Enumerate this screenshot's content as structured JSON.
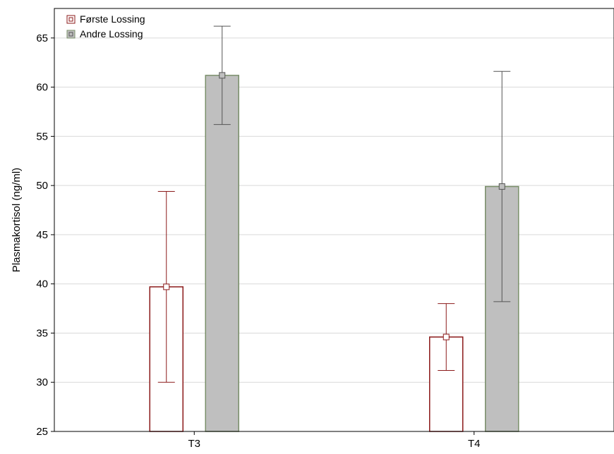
{
  "chart_data": {
    "type": "bar",
    "title": "",
    "xlabel": "",
    "ylabel": "Plasmakortisol (ng/ml)",
    "categories": [
      "T3",
      "T4"
    ],
    "ylim": [
      25,
      68
    ],
    "yticks": [
      25,
      30,
      35,
      40,
      45,
      50,
      55,
      60,
      65
    ],
    "grid": true,
    "legend_position": "top-left",
    "series": [
      {
        "name": "Første Lossing",
        "values": [
          39.7,
          34.6
        ],
        "error_low": [
          30.0,
          31.2
        ],
        "error_high": [
          49.4,
          38.0
        ],
        "fill": "#ffffff",
        "stroke": "#8b1a1a"
      },
      {
        "name": "Andre Lossing",
        "values": [
          61.2,
          49.9
        ],
        "error_low": [
          56.2,
          38.2
        ],
        "error_high": [
          66.2,
          61.6
        ],
        "fill": "#bfbfbf",
        "stroke": "#7a8f6a",
        "error_color": "#555555"
      }
    ]
  }
}
